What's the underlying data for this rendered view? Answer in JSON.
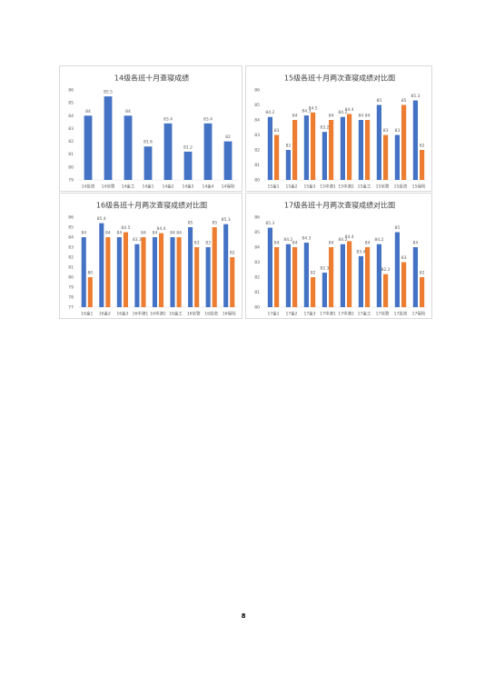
{
  "chart_data": [
    {
      "type": "bar",
      "title": "14级各班十月查寝成绩",
      "categories": [
        "14投资",
        "14信管",
        "14金工",
        "14金1",
        "14金2",
        "14金3",
        "14金4",
        "14保险"
      ],
      "values": [
        84,
        85.5,
        84,
        81.6,
        83.4,
        81.2,
        83.4,
        82
      ],
      "color": "#4472c4",
      "ylim": [
        79,
        86
      ],
      "yticks": [
        79,
        80,
        81,
        82,
        83,
        84,
        85,
        86
      ],
      "grid": false,
      "data_labels": true
    },
    {
      "type": "bar",
      "title": "15级各班十月两次查寝成绩对比图",
      "categories": [
        "15金1",
        "15金2",
        "15金3",
        "15中澳1",
        "15中澳2",
        "15金工",
        "15信管",
        "15投资",
        "15保险"
      ],
      "series": [
        {
          "color": "#4472c4",
          "values": [
            84.2,
            82,
            84.3,
            83.2,
            84.2,
            84,
            85,
            83,
            85.3
          ]
        },
        {
          "color": "#ed7d31",
          "values": [
            83,
            84,
            84.5,
            84,
            84.4,
            84,
            83,
            85,
            82
          ]
        }
      ],
      "ylim": [
        80,
        86
      ],
      "yticks": [
        80,
        81,
        82,
        83,
        84,
        85,
        86
      ],
      "grid": false,
      "data_labels": true
    },
    {
      "type": "bar",
      "title": "16级各班十月两次查寝成绩对比图",
      "categories": [
        "16金1",
        "16金2",
        "16金3",
        "16中澳1",
        "16中澳2",
        "16金工",
        "16信管",
        "16投资",
        "16保险"
      ],
      "series": [
        {
          "color": "#4472c4",
          "values": [
            84,
            85.4,
            84,
            83.3,
            84,
            84,
            85,
            83,
            85.3
          ]
        },
        {
          "color": "#ed7d31",
          "values": [
            80,
            84,
            84.5,
            84,
            84.4,
            84,
            83,
            85,
            82
          ]
        }
      ],
      "ylim": [
        77,
        86
      ],
      "yticks": [
        77,
        78,
        79,
        80,
        81,
        82,
        83,
        84,
        85,
        86
      ],
      "grid": false,
      "data_labels": true
    },
    {
      "type": "bar",
      "title": "17级各班十月两次查寝成绩对比图",
      "categories": [
        "17金1",
        "17金2",
        "17金3",
        "17中澳1",
        "17中澳2",
        "17金工",
        "17信管",
        "17投资",
        "17保险"
      ],
      "series": [
        {
          "color": "#4472c4",
          "values": [
            85.3,
            84.2,
            84.3,
            82.3,
            84.2,
            83.4,
            84.2,
            85,
            84
          ]
        },
        {
          "color": "#ed7d31",
          "values": [
            84,
            84,
            82,
            84,
            84.4,
            84,
            82.2,
            83,
            82
          ]
        }
      ],
      "ylim": [
        80,
        86
      ],
      "yticks": [
        80,
        81,
        82,
        83,
        84,
        85,
        86
      ],
      "grid": false,
      "data_labels": true
    }
  ],
  "page_number": "8"
}
